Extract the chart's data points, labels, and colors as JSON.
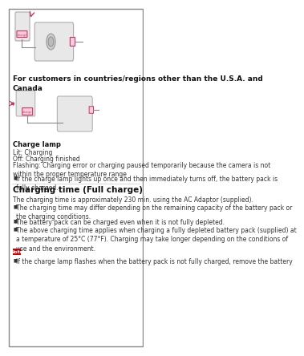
{
  "bg_color": "#ffffff",
  "border_color": "#000000",
  "title_bold": "For customers in countries/regions other than the U.S.A. and\nCanada",
  "charge_lamp_title": "Charge lamp",
  "charge_lamp_lines": [
    "Lit: Charging",
    "Off: Charging finished",
    "Flashing: Charging error or charging paused temporarily because the camera is not\nwithin the proper temperature range"
  ],
  "bullet_lamp": "If the charge lamp lights up once and then immediately turns off, the battery pack is\nfully charged.",
  "charging_section_title": "Charging time (Full charge)",
  "charging_intro": "The charging time is approximately 230 min. using the AC Adaptor (supplied).",
  "charging_bullets": [
    "The charging time may differ depending on the remaining capacity of the battery pack or\nthe charging conditions.",
    "The battery pack can be charged even when it is not fully depleted.",
    "The above charging time applies when charging a fully depleted battery pack (supplied) at\na temperature of 25°C (77°F). Charging may take longer depending on the conditions of\nuse and the environment."
  ],
  "note_label": "Note",
  "note_bullet": "If the charge lamp flashes when the battery pack is not fully charged, remove the battery",
  "note_bg": "#cc0000",
  "note_text_color": "#ffffff",
  "text_color": "#333333",
  "text_color_dark": "#111111"
}
